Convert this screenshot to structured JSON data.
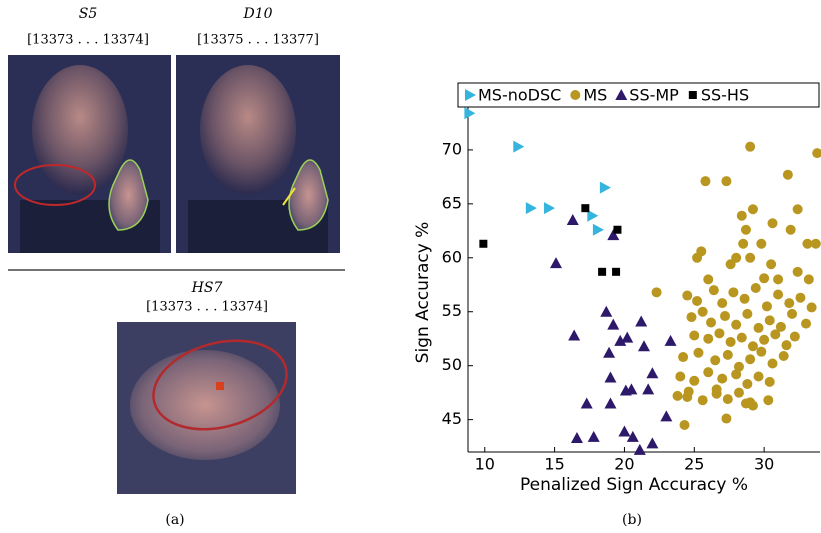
{
  "panel_a": {
    "frames": [
      {
        "label": "S5",
        "range": "[13373 . . . 13374]"
      },
      {
        "label": "D10",
        "range": "[13375 . . . 13377]"
      },
      {
        "label": "HS7",
        "range": "[13373 . . . 13374]"
      }
    ],
    "caption": "(a)"
  },
  "chart_data": {
    "type": "scatter",
    "xlabel": "Penalized Sign Accuracy %",
    "ylabel": "Sign Accuracy %",
    "caption": "(b)",
    "xlim": [
      8.8,
      34
    ],
    "ylim": [
      42,
      76.2
    ],
    "xticks": [
      10,
      15,
      20,
      25,
      30
    ],
    "yticks": [
      45,
      50,
      55,
      60,
      65,
      70
    ],
    "series": [
      {
        "name": "MS-noDSC",
        "color": "#35b5de",
        "marker": "triangle-right",
        "x": [
          8.9,
          12.4,
          13.3,
          14.6,
          18.6,
          17.7,
          18.1
        ],
        "y": [
          73.4,
          70.3,
          64.6,
          64.6,
          66.5,
          63.9,
          62.6
        ]
      },
      {
        "name": "MS",
        "color": "#b8961f",
        "marker": "circle",
        "x": [
          29,
          33.8,
          31.7,
          25.8,
          27.3,
          29.2,
          32.4,
          28.4,
          30.6,
          28.7,
          31.9,
          22.3,
          25.5,
          25.2,
          26,
          27.6,
          28.5,
          29.8,
          33.1,
          33.7,
          28,
          29,
          30.5,
          32.4,
          30,
          31,
          33.2,
          24.5,
          25.2,
          26.4,
          27,
          27.8,
          28.6,
          29.4,
          30.2,
          31,
          31.8,
          32.6,
          33.4,
          24.8,
          25.6,
          26.2,
          27.2,
          28,
          28.8,
          29.6,
          30.4,
          31.2,
          32,
          33,
          25,
          26,
          26.8,
          27.6,
          28.4,
          29.2,
          30,
          30.8,
          31.6,
          32.2,
          24.2,
          25.3,
          26.5,
          27.4,
          28.2,
          29,
          29.8,
          30.6,
          31.4,
          24,
          25,
          26,
          27,
          28,
          28.8,
          29.6,
          30.4,
          23.8,
          24.6,
          25.6,
          26.6,
          27.4,
          28.2,
          29,
          24.3,
          27.3,
          28.7,
          29.2,
          24.5,
          26.6,
          30.3
        ],
        "y": [
          70.3,
          69.7,
          67.7,
          67.1,
          67.1,
          64.5,
          64.5,
          63.9,
          63.2,
          62.6,
          62.6,
          56.8,
          60.6,
          60,
          58,
          59.4,
          61.3,
          61.3,
          61.3,
          61.3,
          60,
          60,
          59.4,
          58.7,
          58.1,
          58,
          58,
          56.5,
          56,
          57,
          55.8,
          56.8,
          56.2,
          57.2,
          55.5,
          56.6,
          55.8,
          56.3,
          55.4,
          54.5,
          55,
          54,
          54.6,
          53.8,
          54.8,
          53.5,
          54.2,
          53.6,
          54.8,
          53.9,
          52.8,
          52.5,
          53,
          52.2,
          52.6,
          51.8,
          52.4,
          52.9,
          51.9,
          52.7,
          50.8,
          51.2,
          50.5,
          51,
          49.9,
          50.6,
          51.3,
          50.2,
          50.9,
          49,
          48.6,
          49.4,
          48.8,
          49.2,
          48.3,
          49,
          48.5,
          47.2,
          47.6,
          46.8,
          47.4,
          46.9,
          47.5,
          46.6,
          44.5,
          45.1,
          46.5,
          46.3,
          47.1,
          47.8,
          46.8
        ]
      },
      {
        "name": "SS-MP",
        "color": "#2d1869",
        "marker": "triangle-up",
        "x": [
          16.3,
          19.2,
          15.1,
          18.7,
          16.4,
          19.2,
          18.9,
          20.2,
          21.2,
          19.7,
          21.4,
          19,
          23.3,
          22,
          20.5,
          20.1,
          19,
          17.3,
          17.8,
          20,
          21.7,
          20.6,
          21.1,
          22,
          23,
          16.6
        ],
        "y": [
          63.5,
          62.1,
          59.5,
          55,
          52.8,
          53.8,
          51.2,
          52.6,
          54.1,
          52.3,
          51.8,
          48.9,
          52.3,
          49.3,
          47.8,
          47.7,
          46.5,
          46.5,
          43.4,
          43.9,
          47.8,
          43.4,
          42.2,
          42.8,
          45.3,
          43.3
        ]
      },
      {
        "name": "SS-HS",
        "color": "#000000",
        "marker": "square",
        "x": [
          9.9,
          17.2,
          19.5,
          18.4,
          19.4
        ],
        "y": [
          61.3,
          64.6,
          62.6,
          58.7,
          58.7
        ]
      }
    ]
  }
}
